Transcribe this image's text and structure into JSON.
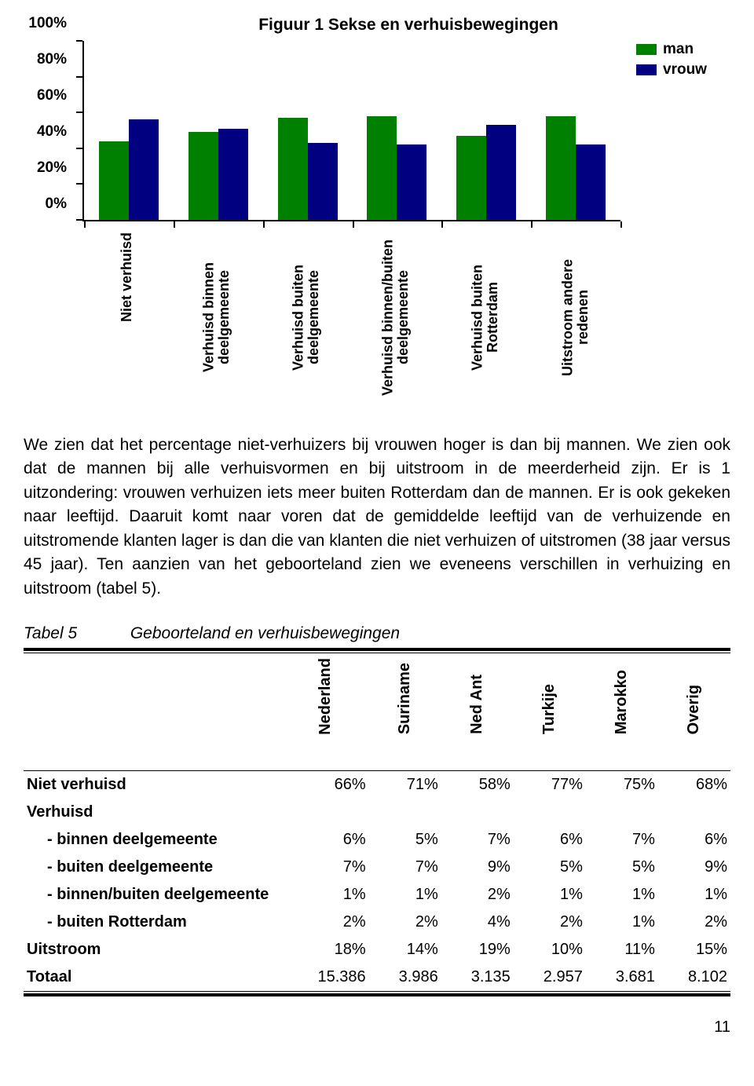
{
  "chart": {
    "title": "Figuur 1 Sekse en verhuisbewegingen",
    "legend": {
      "man_label": "man",
      "vrouw_label": "vrouw"
    },
    "colors": {
      "man": "#008000",
      "vrouw": "#000080"
    },
    "y_ticks": [
      "0%",
      "20%",
      "40%",
      "60%",
      "80%",
      "100%"
    ],
    "categories": [
      "Niet verhuisd",
      "Verhuisd binnen deelgemeente",
      "Verhuisd buiten deelgemeente",
      "Verhuisd binnen/buiten deelgemeente",
      "Verhuisd buiten Rotterdam",
      "Uitstroom andere redenen"
    ],
    "series": {
      "man": [
        44,
        49,
        57,
        58,
        47,
        58
      ],
      "vrouw": [
        56,
        51,
        43,
        42,
        53,
        42
      ]
    }
  },
  "paragraph": "We zien dat het percentage niet-verhuizers bij vrouwen hoger is dan bij mannen. We zien ook dat de mannen bij alle verhuisvormen en bij uitstroom in de meerderheid zijn. Er is 1 uitzondering: vrouwen verhuizen iets meer buiten Rotterdam dan de mannen. Er is ook gekeken naar leeftijd. Daaruit komt naar voren dat de gemiddelde leeftijd van de verhuizende en uitstromende klanten lager is dan die van klanten die niet verhuizen of uitstromen (38 jaar versus 45 jaar). Ten aanzien van het geboorteland zien we eveneens verschillen in verhuizing en uitstroom (tabel 5).",
  "table": {
    "caption_num": "Tabel 5",
    "caption_txt": "Geboorteland en verhuisbewegingen",
    "columns": [
      "Nederland",
      "Suriname",
      "Ned Ant",
      "Turkije",
      "Marokko",
      "Overig"
    ],
    "rows": [
      {
        "label": "Niet verhuisd",
        "indent": false,
        "header": false,
        "vals": [
          "66%",
          "71%",
          "58%",
          "77%",
          "75%",
          "68%"
        ]
      },
      {
        "label": "Verhuisd",
        "indent": false,
        "header": true,
        "vals": [
          "",
          "",
          "",
          "",
          "",
          ""
        ]
      },
      {
        "label": "- binnen deelgemeente",
        "indent": true,
        "header": false,
        "vals": [
          "6%",
          "5%",
          "7%",
          "6%",
          "7%",
          "6%"
        ]
      },
      {
        "label": "- buiten deelgemeente",
        "indent": true,
        "header": false,
        "vals": [
          "7%",
          "7%",
          "9%",
          "5%",
          "5%",
          "9%"
        ]
      },
      {
        "label": "- binnen/buiten deelgemeente",
        "indent": true,
        "header": false,
        "vals": [
          "1%",
          "1%",
          "2%",
          "1%",
          "1%",
          "1%"
        ]
      },
      {
        "label": "- buiten Rotterdam",
        "indent": true,
        "header": false,
        "vals": [
          "2%",
          "2%",
          "4%",
          "2%",
          "1%",
          "2%"
        ]
      },
      {
        "label": "Uitstroom",
        "indent": false,
        "header": false,
        "vals": [
          "18%",
          "14%",
          "19%",
          "10%",
          "11%",
          "15%"
        ]
      },
      {
        "label": "Totaal",
        "indent": false,
        "header": false,
        "vals": [
          "15.386",
          "3.986",
          "3.135",
          "2.957",
          "3.681",
          "8.102"
        ]
      }
    ]
  },
  "page_number": "11"
}
